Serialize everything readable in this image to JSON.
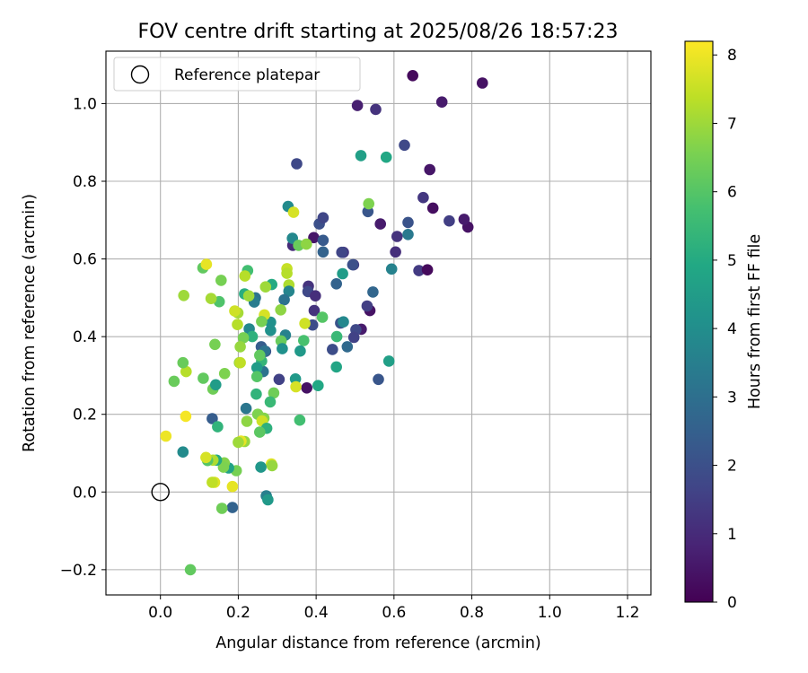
{
  "chart_data": {
    "type": "scatter",
    "title": "FOV centre drift starting at 2025/08/26 18:57:23",
    "xlabel": "Angular distance from reference (arcmin)",
    "ylabel": "Rotation from reference (arcmin)",
    "xlim": [
      -0.14,
      1.26
    ],
    "ylim": [
      -0.265,
      1.135
    ],
    "xticks": [
      0.0,
      0.2,
      0.4,
      0.6,
      0.8,
      1.0,
      1.2
    ],
    "yticks": [
      -0.2,
      0.0,
      0.2,
      0.4,
      0.6,
      0.8,
      1.0
    ],
    "xtick_labels": [
      "0.0",
      "0.2",
      "0.4",
      "0.6",
      "0.8",
      "1.0",
      "1.2"
    ],
    "ytick_labels": [
      "−0.2",
      "0.0",
      "0.2",
      "0.4",
      "0.6",
      "0.8",
      "1.0"
    ],
    "grid": true,
    "legend": {
      "position": "upper-left",
      "entries": [
        {
          "label": "Reference platepar",
          "marker": "open-circle"
        }
      ]
    },
    "reference": {
      "x": 0.0,
      "y": 0.0
    },
    "colorbar": {
      "label": "Hours from first FF file",
      "colormap": "viridis",
      "range": [
        0,
        8.2
      ],
      "ticks": [
        0,
        1,
        2,
        3,
        4,
        5,
        6,
        7,
        8
      ],
      "tick_labels": [
        "0",
        "1",
        "2",
        "3",
        "4",
        "5",
        "6",
        "7",
        "8"
      ]
    },
    "points": [
      [
        0.648,
        1.072,
        0.2
      ],
      [
        0.827,
        1.053,
        0.4
      ],
      [
        0.723,
        1.004,
        0.6
      ],
      [
        0.506,
        0.995,
        0.7
      ],
      [
        0.553,
        0.985,
        1.2
      ],
      [
        0.692,
        0.83,
        0.5
      ],
      [
        0.7,
        0.731,
        0.3
      ],
      [
        0.79,
        0.682,
        0.4
      ],
      [
        0.78,
        0.702,
        0.6
      ],
      [
        0.742,
        0.698,
        1.5
      ],
      [
        0.675,
        0.758,
        1.3
      ],
      [
        0.627,
        0.893,
        1.8
      ],
      [
        0.35,
        0.845,
        1.8
      ],
      [
        0.565,
        0.69,
        0.6
      ],
      [
        0.608,
        0.658,
        1.2
      ],
      [
        0.636,
        0.694,
        2.1
      ],
      [
        0.604,
        0.618,
        1.1
      ],
      [
        0.664,
        0.57,
        1.4
      ],
      [
        0.686,
        0.572,
        0.2
      ],
      [
        0.533,
        0.722,
        2.2
      ],
      [
        0.515,
        0.866,
        4.6
      ],
      [
        0.58,
        0.862,
        4.9
      ],
      [
        0.535,
        0.742,
        6.6
      ],
      [
        0.636,
        0.663,
        3.3
      ],
      [
        0.594,
        0.574,
        3.6
      ],
      [
        0.34,
        0.635,
        1.0
      ],
      [
        0.394,
        0.655,
        0.5
      ],
      [
        0.408,
        0.69,
        2.0
      ],
      [
        0.418,
        0.706,
        1.7
      ],
      [
        0.418,
        0.648,
        2.3
      ],
      [
        0.418,
        0.618,
        2.6
      ],
      [
        0.47,
        0.617,
        1.3
      ],
      [
        0.466,
        0.617,
        1.7
      ],
      [
        0.496,
        0.585,
        1.4
      ],
      [
        0.494,
        0.585,
        2.0
      ],
      [
        0.38,
        0.53,
        1.2
      ],
      [
        0.379,
        0.516,
        1.8
      ],
      [
        0.398,
        0.505,
        1.1
      ],
      [
        0.452,
        0.536,
        2.6
      ],
      [
        0.468,
        0.562,
        4.5
      ],
      [
        0.546,
        0.515,
        2.7
      ],
      [
        0.516,
        0.419,
        0.6
      ],
      [
        0.502,
        0.418,
        1.8
      ],
      [
        0.497,
        0.398,
        1.6
      ],
      [
        0.538,
        0.467,
        0.4
      ],
      [
        0.531,
        0.479,
        1.5
      ],
      [
        0.463,
        0.435,
        2.1
      ],
      [
        0.47,
        0.438,
        3.8
      ],
      [
        0.48,
        0.374,
        2.8
      ],
      [
        0.453,
        0.4,
        5.5
      ],
      [
        0.442,
        0.367,
        1.9
      ],
      [
        0.587,
        0.337,
        4.6
      ],
      [
        0.56,
        0.29,
        2.2
      ],
      [
        0.452,
        0.322,
        4.8
      ],
      [
        0.395,
        0.467,
        1.2
      ],
      [
        0.391,
        0.43,
        1.9
      ],
      [
        0.416,
        0.45,
        6.0
      ],
      [
        0.368,
        0.39,
        5.8
      ],
      [
        0.371,
        0.434,
        7.6
      ],
      [
        0.376,
        0.268,
        0.4
      ],
      [
        0.405,
        0.274,
        4.9
      ],
      [
        0.347,
        0.291,
        4.4
      ],
      [
        0.328,
        0.735,
        3.9
      ],
      [
        0.342,
        0.72,
        7.7
      ],
      [
        0.339,
        0.653,
        3.8
      ],
      [
        0.355,
        0.635,
        6.3
      ],
      [
        0.375,
        0.638,
        6.8
      ],
      [
        0.325,
        0.575,
        7.5
      ],
      [
        0.325,
        0.563,
        7.3
      ],
      [
        0.33,
        0.533,
        7.2
      ],
      [
        0.33,
        0.517,
        3.7
      ],
      [
        0.318,
        0.495,
        3.1
      ],
      [
        0.309,
        0.469,
        6.8
      ],
      [
        0.321,
        0.404,
        3.6
      ],
      [
        0.31,
        0.389,
        6.3
      ],
      [
        0.313,
        0.369,
        4.1
      ],
      [
        0.305,
        0.29,
        1.6
      ],
      [
        0.359,
        0.363,
        4.4
      ],
      [
        0.348,
        0.271,
        7.7
      ],
      [
        0.358,
        0.185,
        5.7
      ],
      [
        0.291,
        0.255,
        6.4
      ],
      [
        0.264,
        0.31,
        3.1
      ],
      [
        0.26,
        0.337,
        5.4
      ],
      [
        0.248,
        0.32,
        4.5
      ],
      [
        0.248,
        0.297,
        6.0
      ],
      [
        0.246,
        0.252,
        5.3
      ],
      [
        0.283,
        0.416,
        4.1
      ],
      [
        0.283,
        0.437,
        4.1
      ],
      [
        0.286,
        0.534,
        5.0
      ],
      [
        0.27,
        0.528,
        7.0
      ],
      [
        0.267,
        0.456,
        7.7
      ],
      [
        0.26,
        0.439,
        6.5
      ],
      [
        0.244,
        0.5,
        3.1
      ],
      [
        0.241,
        0.489,
        3.4
      ],
      [
        0.224,
        0.57,
        5.7
      ],
      [
        0.217,
        0.556,
        7.3
      ],
      [
        0.216,
        0.51,
        5.1
      ],
      [
        0.227,
        0.505,
        7.0
      ],
      [
        0.228,
        0.42,
        3.8
      ],
      [
        0.236,
        0.4,
        5.2
      ],
      [
        0.259,
        0.374,
        2.4
      ],
      [
        0.27,
        0.362,
        1.9
      ],
      [
        0.268,
        0.363,
        3.1
      ],
      [
        0.213,
        0.397,
        6.5
      ],
      [
        0.205,
        0.374,
        6.9
      ],
      [
        0.199,
        0.461,
        7.1
      ],
      [
        0.191,
        0.466,
        7.6
      ],
      [
        0.198,
        0.431,
        7.3
      ],
      [
        0.203,
        0.333,
        6.8
      ],
      [
        0.205,
        0.333,
        7.4
      ],
      [
        0.255,
        0.352,
        6.2
      ],
      [
        0.22,
        0.215,
        3.2
      ],
      [
        0.25,
        0.2,
        6.6
      ],
      [
        0.266,
        0.19,
        6.7
      ],
      [
        0.261,
        0.183,
        7.6
      ],
      [
        0.273,
        0.164,
        5.2
      ],
      [
        0.255,
        0.154,
        6.1
      ],
      [
        0.222,
        0.182,
        6.8
      ],
      [
        0.282,
        0.232,
        5.5
      ],
      [
        0.216,
        0.13,
        6.9
      ],
      [
        0.207,
        0.131,
        7.9
      ],
      [
        0.2,
        0.128,
        7.0
      ],
      [
        0.285,
        0.072,
        7.8
      ],
      [
        0.287,
        0.068,
        6.9
      ],
      [
        0.258,
        0.064,
        4.3
      ],
      [
        0.272,
        -0.01,
        3.5
      ],
      [
        0.276,
        -0.02,
        4.4
      ],
      [
        0.185,
        -0.04,
        2.6
      ],
      [
        0.158,
        -0.042,
        6.4
      ],
      [
        0.195,
        0.055,
        6.5
      ],
      [
        0.175,
        0.062,
        4.7
      ],
      [
        0.164,
        0.075,
        6.7
      ],
      [
        0.162,
        0.064,
        6.6
      ],
      [
        0.144,
        0.082,
        5.0
      ],
      [
        0.135,
        0.082,
        7.2
      ],
      [
        0.121,
        0.081,
        6.0
      ],
      [
        0.117,
        0.089,
        7.7
      ],
      [
        0.139,
        0.025,
        7.8
      ],
      [
        0.133,
        0.025,
        7.4
      ],
      [
        0.185,
        0.014,
        7.9
      ],
      [
        0.058,
        0.103,
        3.9
      ],
      [
        0.014,
        0.144,
        8.0
      ],
      [
        0.065,
        0.195,
        8.1
      ],
      [
        0.133,
        0.189,
        2.4
      ],
      [
        0.147,
        0.168,
        5.3
      ],
      [
        0.165,
        0.305,
        6.6
      ],
      [
        0.135,
        0.265,
        6.4
      ],
      [
        0.142,
        0.276,
        4.5
      ],
      [
        0.11,
        0.293,
        6.2
      ],
      [
        0.066,
        0.31,
        7.3
      ],
      [
        0.058,
        0.333,
        6.3
      ],
      [
        0.035,
        0.285,
        6.3
      ],
      [
        0.14,
        0.38,
        6.5
      ],
      [
        0.151,
        0.49,
        5.9
      ],
      [
        0.13,
        0.498,
        7.1
      ],
      [
        0.06,
        0.506,
        7.0
      ],
      [
        0.109,
        0.577,
        6.2
      ],
      [
        0.118,
        0.586,
        7.9
      ],
      [
        0.156,
        0.545,
        6.5
      ],
      [
        0.077,
        -0.2,
        6.2
      ]
    ]
  }
}
